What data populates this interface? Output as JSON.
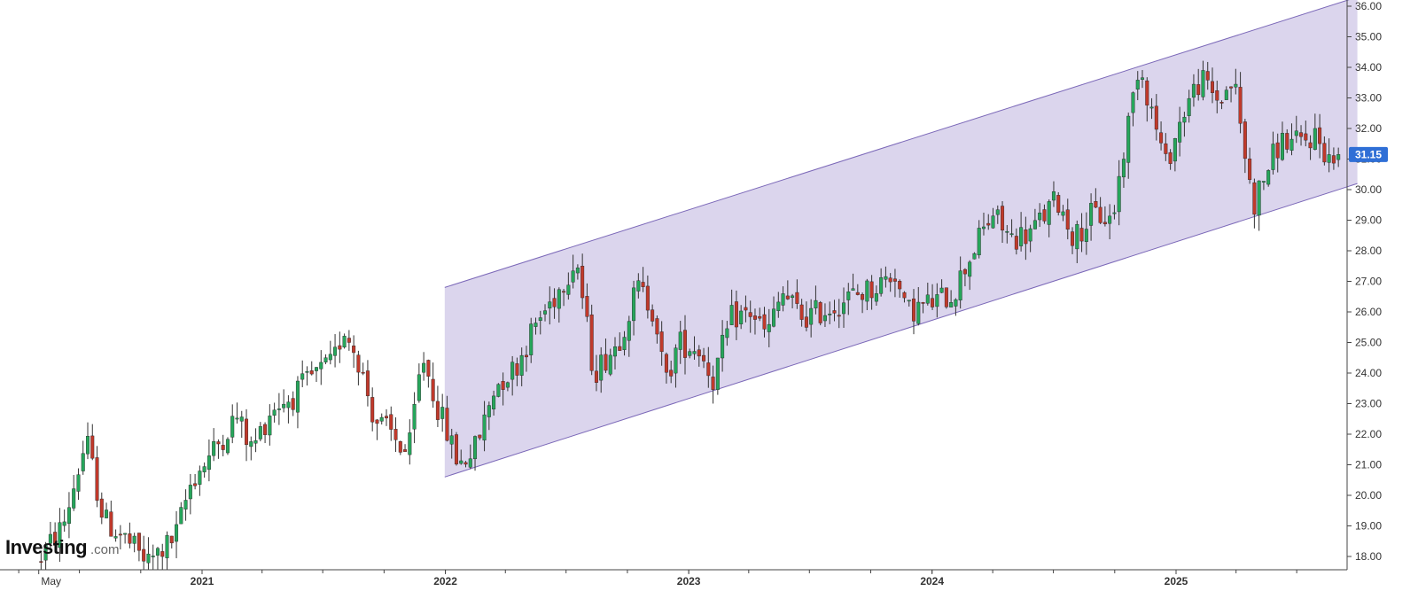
{
  "brand": {
    "name": "Investing",
    "suffix": ".com"
  },
  "colors": {
    "up": "#26a65b",
    "down": "#c0392b",
    "wick": "#333333",
    "channel_fill": "#d9d3ec",
    "channel_line": "#7b68b8",
    "price_tag": "#2f6fd6",
    "axis": "#444444",
    "background": "#ffffff"
  },
  "last_price": {
    "value": 31.15,
    "label": "31.15"
  },
  "chart_data": {
    "type": "candlestick",
    "interval": "weekly",
    "x_range": [
      "2020-05-01",
      "2025-09-30"
    ],
    "ylim": [
      17.6,
      36.2
    ],
    "y_axis_position": "right",
    "grid": false,
    "y_ticks": [
      "18.00",
      "19.00",
      "20.00",
      "21.00",
      "22.00",
      "23.00",
      "24.00",
      "25.00",
      "26.00",
      "27.00",
      "28.00",
      "29.00",
      "30.00",
      "31.00",
      "32.00",
      "33.00",
      "34.00",
      "35.00",
      "36.00"
    ],
    "x_labels": [
      {
        "date": "2020-05-01",
        "text": "May",
        "bold": false
      },
      {
        "date": "2021-01-01",
        "text": "2021",
        "bold": true
      },
      {
        "date": "2022-01-01",
        "text": "2022",
        "bold": true
      },
      {
        "date": "2023-01-01",
        "text": "2023",
        "bold": true
      },
      {
        "date": "2024-01-01",
        "text": "2024",
        "bold": true
      },
      {
        "date": "2025-01-01",
        "text": "2025",
        "bold": true
      }
    ],
    "anchors": [
      [
        "2020-05-01",
        17.8
      ],
      [
        "2020-06-10",
        19.0
      ],
      [
        "2020-07-15",
        21.8
      ],
      [
        "2020-08-10",
        19.2
      ],
      [
        "2020-09-10",
        18.6
      ],
      [
        "2020-10-15",
        17.8
      ],
      [
        "2020-11-25",
        18.6
      ],
      [
        "2020-12-20",
        20.5
      ],
      [
        "2021-01-20",
        21.4
      ],
      [
        "2021-02-25",
        22.6
      ],
      [
        "2021-03-20",
        21.5
      ],
      [
        "2021-04-20",
        22.9
      ],
      [
        "2021-05-20",
        23.2
      ],
      [
        "2021-06-20",
        23.9
      ],
      [
        "2021-07-20",
        24.3
      ],
      [
        "2021-08-05",
        25.5
      ],
      [
        "2021-08-25",
        24.6
      ],
      [
        "2021-09-20",
        22.5
      ],
      [
        "2021-10-15",
        22.0
      ],
      [
        "2021-11-10",
        21.3
      ],
      [
        "2021-12-01",
        24.6
      ],
      [
        "2021-12-25",
        22.8
      ],
      [
        "2022-01-25",
        21.0
      ],
      [
        "2022-02-20",
        21.6
      ],
      [
        "2022-03-20",
        23.6
      ],
      [
        "2022-04-20",
        24.2
      ],
      [
        "2022-05-20",
        25.6
      ],
      [
        "2022-06-20",
        26.6
      ],
      [
        "2022-07-20",
        27.8
      ],
      [
        "2022-08-15",
        24.0
      ],
      [
        "2022-09-20",
        25.0
      ],
      [
        "2022-10-20",
        26.8
      ],
      [
        "2022-11-15",
        26.0
      ],
      [
        "2022-11-30",
        23.6
      ],
      [
        "2022-12-20",
        25.0
      ],
      [
        "2023-01-20",
        24.8
      ],
      [
        "2023-02-10",
        23.8
      ],
      [
        "2023-03-10",
        25.8
      ],
      [
        "2023-04-10",
        26.0
      ],
      [
        "2023-05-01",
        25.2
      ],
      [
        "2023-05-25",
        26.6
      ],
      [
        "2023-06-25",
        25.8
      ],
      [
        "2023-08-01",
        26.1
      ],
      [
        "2023-09-05",
        26.5
      ],
      [
        "2023-10-10",
        26.8
      ],
      [
        "2023-11-10",
        27.3
      ],
      [
        "2023-11-25",
        26.0
      ],
      [
        "2024-01-05",
        26.3
      ],
      [
        "2024-02-05",
        26.6
      ],
      [
        "2024-03-05",
        28.0
      ],
      [
        "2024-04-05",
        29.2
      ],
      [
        "2024-05-01",
        28.4
      ],
      [
        "2024-06-01",
        28.6
      ],
      [
        "2024-07-10",
        29.7
      ],
      [
        "2024-08-05",
        28.4
      ],
      [
        "2024-09-01",
        29.2
      ],
      [
        "2024-10-01",
        29.0
      ],
      [
        "2024-10-15",
        30.9
      ],
      [
        "2024-11-10",
        34.2
      ],
      [
        "2024-11-30",
        32.5
      ],
      [
        "2024-12-20",
        30.8
      ],
      [
        "2025-01-20",
        32.8
      ],
      [
        "2025-02-10",
        33.6
      ],
      [
        "2025-03-10",
        32.9
      ],
      [
        "2025-04-01",
        33.6
      ],
      [
        "2025-04-20",
        30.8
      ],
      [
        "2025-05-01",
        29.5
      ],
      [
        "2025-05-20",
        30.6
      ],
      [
        "2025-06-10",
        31.6
      ],
      [
        "2025-07-10",
        31.5
      ],
      [
        "2025-08-01",
        31.8
      ],
      [
        "2025-08-25",
        30.9
      ],
      [
        "2025-09-01",
        31.15
      ]
    ],
    "channel": {
      "start": "2021-12-31",
      "end": "2025-09-30",
      "upper": [
        26.8,
        36.3
      ],
      "lower": [
        20.6,
        30.2
      ]
    }
  }
}
